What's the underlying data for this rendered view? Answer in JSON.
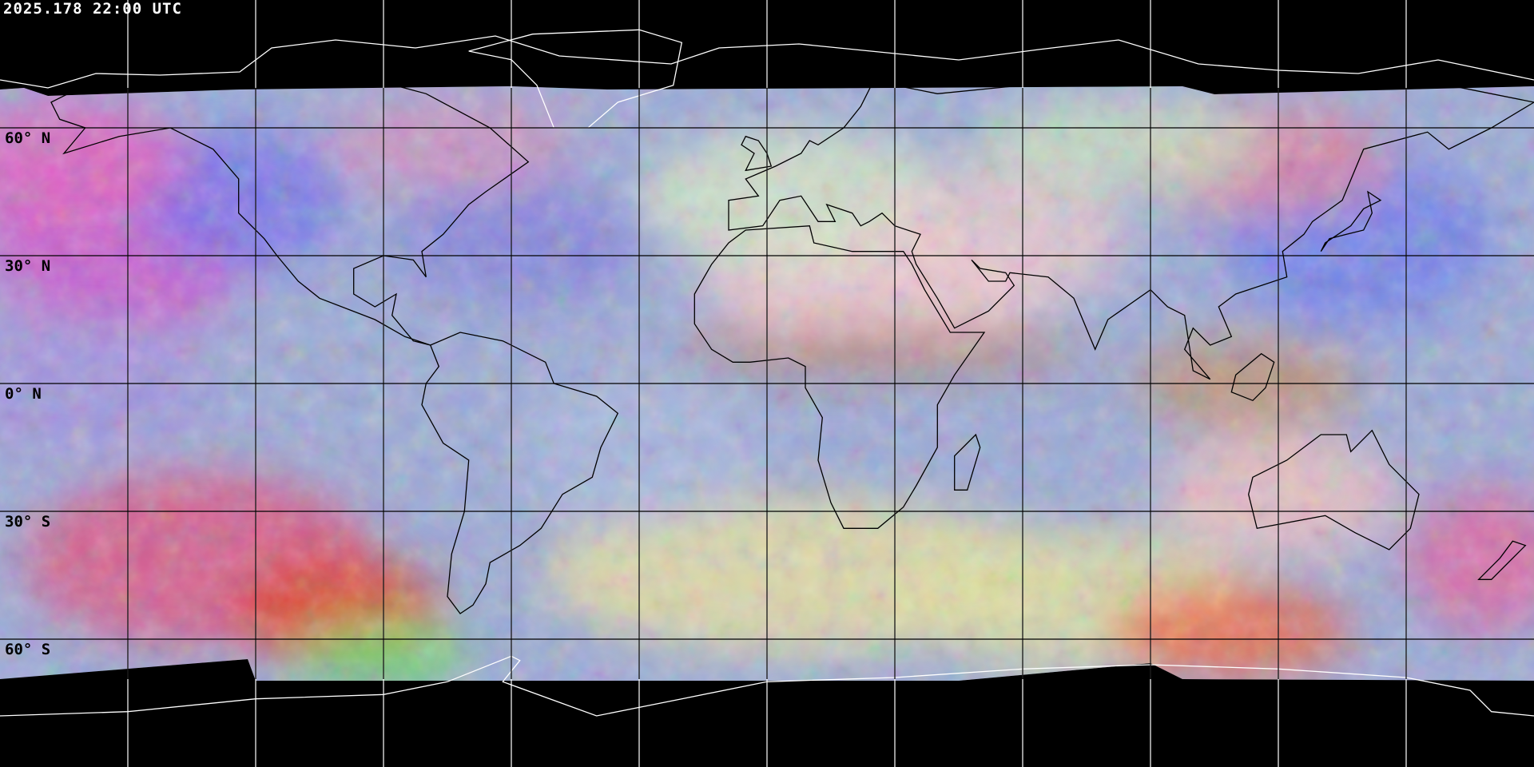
{
  "timestamp": "2025.178 22:00 UTC",
  "latitude_labels": [
    "60° N",
    "30° N",
    "0° N",
    "30° S",
    "60° S"
  ],
  "map": {
    "projection": "equirectangular",
    "grid_spacing_degrees": 30,
    "coastline_color_on_imagery": "#000000",
    "coastline_color_on_background": "#ffffff",
    "grid_color_on_imagery": "#000000",
    "grid_color_on_background": "#ffffff",
    "background": "#000000"
  }
}
